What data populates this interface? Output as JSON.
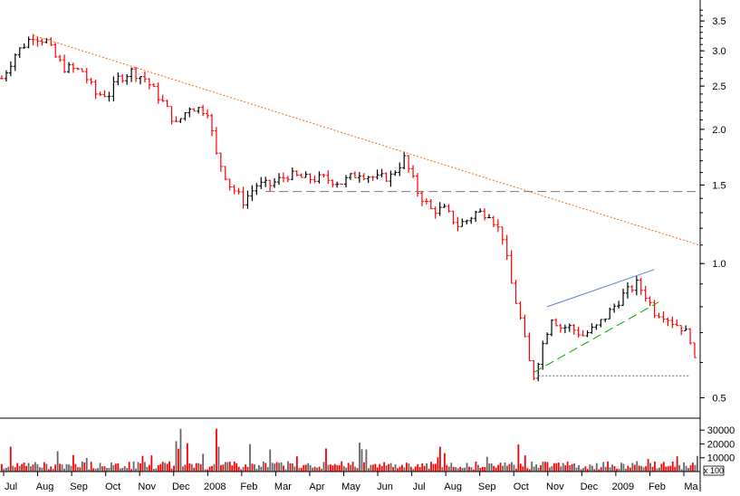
{
  "chart_data": {
    "type": "candlestick",
    "price_axis": {
      "scale": "log",
      "ylim": [
        0.45,
        3.9
      ],
      "ticks": [
        {
          "value": 0.5,
          "label": "0.5"
        },
        {
          "value": 1.0,
          "label": "1.0"
        },
        {
          "value": 1.5,
          "label": "1.5"
        },
        {
          "value": 2.0,
          "label": "2.0"
        },
        {
          "value": 2.5,
          "label": "2.5"
        },
        {
          "value": 3.0,
          "label": "3.0"
        },
        {
          "value": 3.5,
          "label": "3.5"
        }
      ]
    },
    "volume_axis": {
      "ylim": [
        0,
        38000
      ],
      "ticks": [
        {
          "value": 10000,
          "label": "10000"
        },
        {
          "value": 20000,
          "label": "20000"
        },
        {
          "value": 30000,
          "label": "30000"
        }
      ],
      "unit_label": "x 100"
    },
    "x_labels": [
      "Jul",
      "Aug",
      "Sep",
      "Oct",
      "Nov",
      "Dec",
      "2008",
      "Feb",
      "Mar",
      "Apr",
      "May",
      "Jun",
      "Jul",
      "Aug",
      "Sep",
      "Oct",
      "Nov",
      "Dec",
      "2009",
      "Feb",
      "Ma"
    ],
    "price_path": [
      [
        0,
        2.6
      ],
      [
        3,
        2.95
      ],
      [
        7,
        3.25
      ],
      [
        10,
        3.15
      ],
      [
        12,
        2.9
      ],
      [
        14,
        2.75
      ],
      [
        18,
        2.7
      ],
      [
        21,
        2.4
      ],
      [
        24,
        2.4
      ],
      [
        26,
        2.6
      ],
      [
        29,
        2.7
      ],
      [
        32,
        2.6
      ],
      [
        36,
        2.3
      ],
      [
        39,
        2.05
      ],
      [
        42,
        2.25
      ],
      [
        46,
        2.2
      ],
      [
        48,
        1.75
      ],
      [
        51,
        1.5
      ],
      [
        54,
        1.38
      ],
      [
        57,
        1.5
      ],
      [
        60,
        1.5
      ],
      [
        64,
        1.58
      ],
      [
        68,
        1.55
      ],
      [
        72,
        1.55
      ],
      [
        76,
        1.52
      ],
      [
        80,
        1.6
      ],
      [
        84,
        1.55
      ],
      [
        87,
        1.57
      ],
      [
        90,
        1.72
      ],
      [
        93,
        1.45
      ],
      [
        96,
        1.32
      ],
      [
        99,
        1.32
      ],
      [
        102,
        1.22
      ],
      [
        104,
        1.25
      ],
      [
        106,
        1.3
      ],
      [
        109,
        1.3
      ],
      [
        112,
        1.15
      ],
      [
        114,
        0.9
      ],
      [
        116,
        0.75
      ],
      [
        118,
        0.6
      ],
      [
        119,
        0.56
      ],
      [
        121,
        0.66
      ],
      [
        123,
        0.76
      ],
      [
        125,
        0.72
      ],
      [
        127,
        0.72
      ],
      [
        130,
        0.69
      ],
      [
        133,
        0.72
      ],
      [
        136,
        0.78
      ],
      [
        139,
        0.85
      ],
      [
        142,
        0.9
      ],
      [
        144,
        0.85
      ],
      [
        146,
        0.78
      ],
      [
        148,
        0.77
      ],
      [
        150,
        0.74
      ],
      [
        152,
        0.72
      ],
      [
        154,
        0.68
      ],
      [
        155,
        0.6
      ]
    ],
    "bar_count": 156,
    "annotation_lines": [
      {
        "name": "long-term-downtrend",
        "style": "dotted",
        "color": "#ff6600",
        "from": [
          7,
          3.25
        ],
        "to": [
          156,
          1.1
        ]
      },
      {
        "name": "support-line",
        "style": "dashed",
        "color": "#777777",
        "from": [
          59,
          1.45
        ],
        "to": [
          156,
          1.45
        ]
      },
      {
        "name": "upper-channel",
        "style": "solid",
        "color": "#5b82e0",
        "from": [
          122,
          0.8
        ],
        "to": [
          146,
          0.97
        ]
      },
      {
        "name": "rising-support",
        "style": "dashed",
        "color": "#00aa00",
        "from": [
          119,
          0.57
        ],
        "to": [
          147,
          0.82
        ]
      },
      {
        "name": "bottom-support",
        "style": "dotted",
        "color": "#666666",
        "from": [
          120,
          0.56
        ],
        "to": [
          154,
          0.56
        ]
      }
    ],
    "colors": {
      "up": "#000000",
      "down": "#ff0000",
      "volume_dark": "#666666",
      "volume_red": "#ff0000"
    }
  }
}
